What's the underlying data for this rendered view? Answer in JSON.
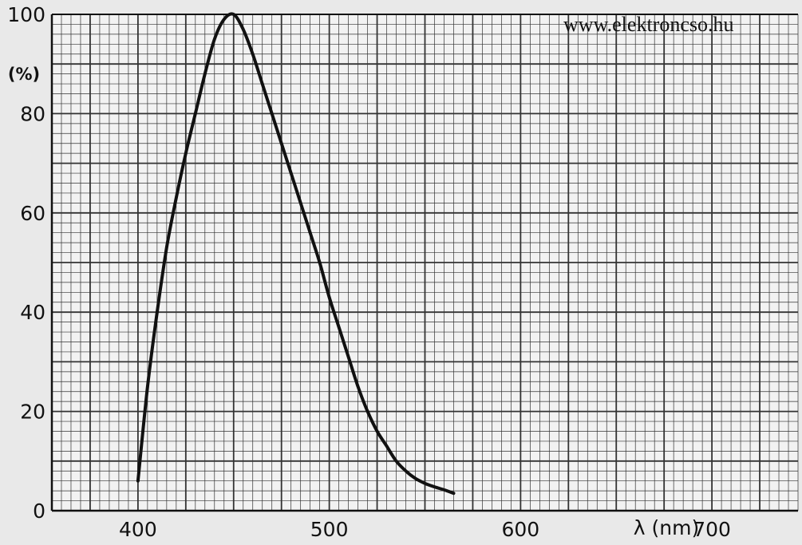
{
  "watermark": "www.elektroncso.hu",
  "chart_data": {
    "type": "line",
    "title": "",
    "xlabel": "λ (nm)",
    "ylabel": "(%)",
    "xlim": [
      355,
      745
    ],
    "ylim": [
      0,
      100
    ],
    "x_ticks": [
      400,
      500,
      600,
      700
    ],
    "y_ticks": [
      0,
      20,
      40,
      60,
      80,
      100
    ],
    "grid": true,
    "series": [
      {
        "values": [
          {
            "x": 400,
            "y": 6
          },
          {
            "x": 405,
            "y": 25
          },
          {
            "x": 410,
            "y": 40
          },
          {
            "x": 415,
            "y": 53
          },
          {
            "x": 420,
            "y": 63
          },
          {
            "x": 425,
            "y": 72
          },
          {
            "x": 430,
            "y": 80
          },
          {
            "x": 435,
            "y": 88
          },
          {
            "x": 440,
            "y": 95
          },
          {
            "x": 445,
            "y": 99
          },
          {
            "x": 450,
            "y": 100
          },
          {
            "x": 455,
            "y": 97
          },
          {
            "x": 460,
            "y": 92
          },
          {
            "x": 465,
            "y": 86
          },
          {
            "x": 470,
            "y": 80
          },
          {
            "x": 475,
            "y": 74
          },
          {
            "x": 480,
            "y": 68
          },
          {
            "x": 485,
            "y": 62
          },
          {
            "x": 490,
            "y": 56
          },
          {
            "x": 495,
            "y": 50
          },
          {
            "x": 500,
            "y": 43
          },
          {
            "x": 505,
            "y": 37
          },
          {
            "x": 510,
            "y": 31
          },
          {
            "x": 515,
            "y": 25
          },
          {
            "x": 520,
            "y": 20
          },
          {
            "x": 525,
            "y": 16
          },
          {
            "x": 530,
            "y": 13
          },
          {
            "x": 535,
            "y": 10
          },
          {
            "x": 540,
            "y": 8
          },
          {
            "x": 545,
            "y": 6.5
          },
          {
            "x": 550,
            "y": 5.5
          },
          {
            "x": 555,
            "y": 4.8
          },
          {
            "x": 560,
            "y": 4.2
          },
          {
            "x": 565,
            "y": 3.5
          }
        ]
      }
    ]
  }
}
